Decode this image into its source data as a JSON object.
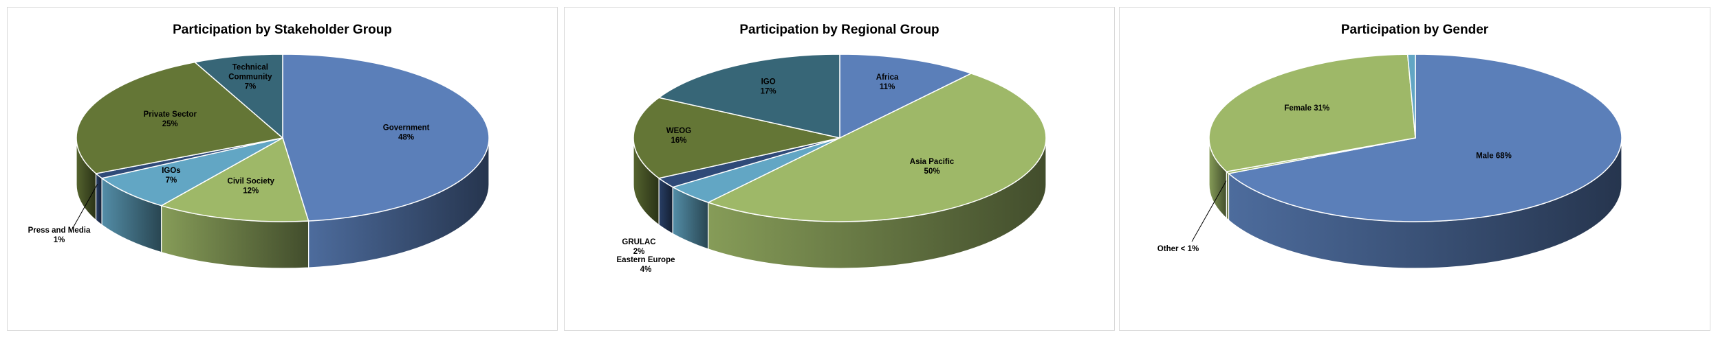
{
  "chart_data": [
    {
      "type": "pie",
      "title": "Participation by Stakeholder Group",
      "slices": [
        {
          "name": "Government",
          "value": 48,
          "label": "Government|48%",
          "color": "#5b7fb9"
        },
        {
          "name": "Civil Society",
          "value": 12,
          "label": "Civil Society|12%",
          "color": "#9eb868"
        },
        {
          "name": "IGOs",
          "value": 7,
          "label": "IGOs|7%",
          "color": "#62a6c4"
        },
        {
          "name": "Press and Media",
          "value": 1,
          "label": "Press and Media|1%",
          "color": "#2f4a78"
        },
        {
          "name": "Private Sector",
          "value": 25,
          "label": "Private Sector|25%",
          "color": "#647636"
        },
        {
          "name": "Technical Community",
          "value": 7,
          "label": "Technical|Community|7%",
          "color": "#376677"
        }
      ]
    },
    {
      "type": "pie",
      "title": "Participation by Regional Group",
      "slices": [
        {
          "name": "Africa",
          "value": 11,
          "label": "Africa|11%",
          "color": "#5b7fb9"
        },
        {
          "name": "Asia Pacific",
          "value": 50,
          "label": "Asia Pacific|50%",
          "color": "#9eb868"
        },
        {
          "name": "Eastern Europe",
          "value": 4,
          "label": "Eastern Europe|4%",
          "color": "#62a6c4"
        },
        {
          "name": "GRULAC",
          "value": 2,
          "label": "GRULAC|2%",
          "color": "#2f4a78"
        },
        {
          "name": "WEOG",
          "value": 16,
          "label": "WEOG|16%",
          "color": "#647636"
        },
        {
          "name": "IGO",
          "value": 17,
          "label": "IGO|17%",
          "color": "#376677"
        }
      ]
    },
    {
      "type": "pie",
      "title": "Participation by Gender",
      "slices": [
        {
          "name": "Male",
          "value": 68,
          "label": "Male 68%",
          "color": "#5b7fb9"
        },
        {
          "name": "Other",
          "value": 0.4,
          "label": "Other < 1%",
          "color": "#9eb868"
        },
        {
          "name": "Female",
          "value": 31,
          "label": "Female 31%",
          "color": "#9eb868"
        },
        {
          "name": "Other",
          "value": 0.6,
          "label": "",
          "color": "#62a6c4"
        }
      ]
    }
  ]
}
